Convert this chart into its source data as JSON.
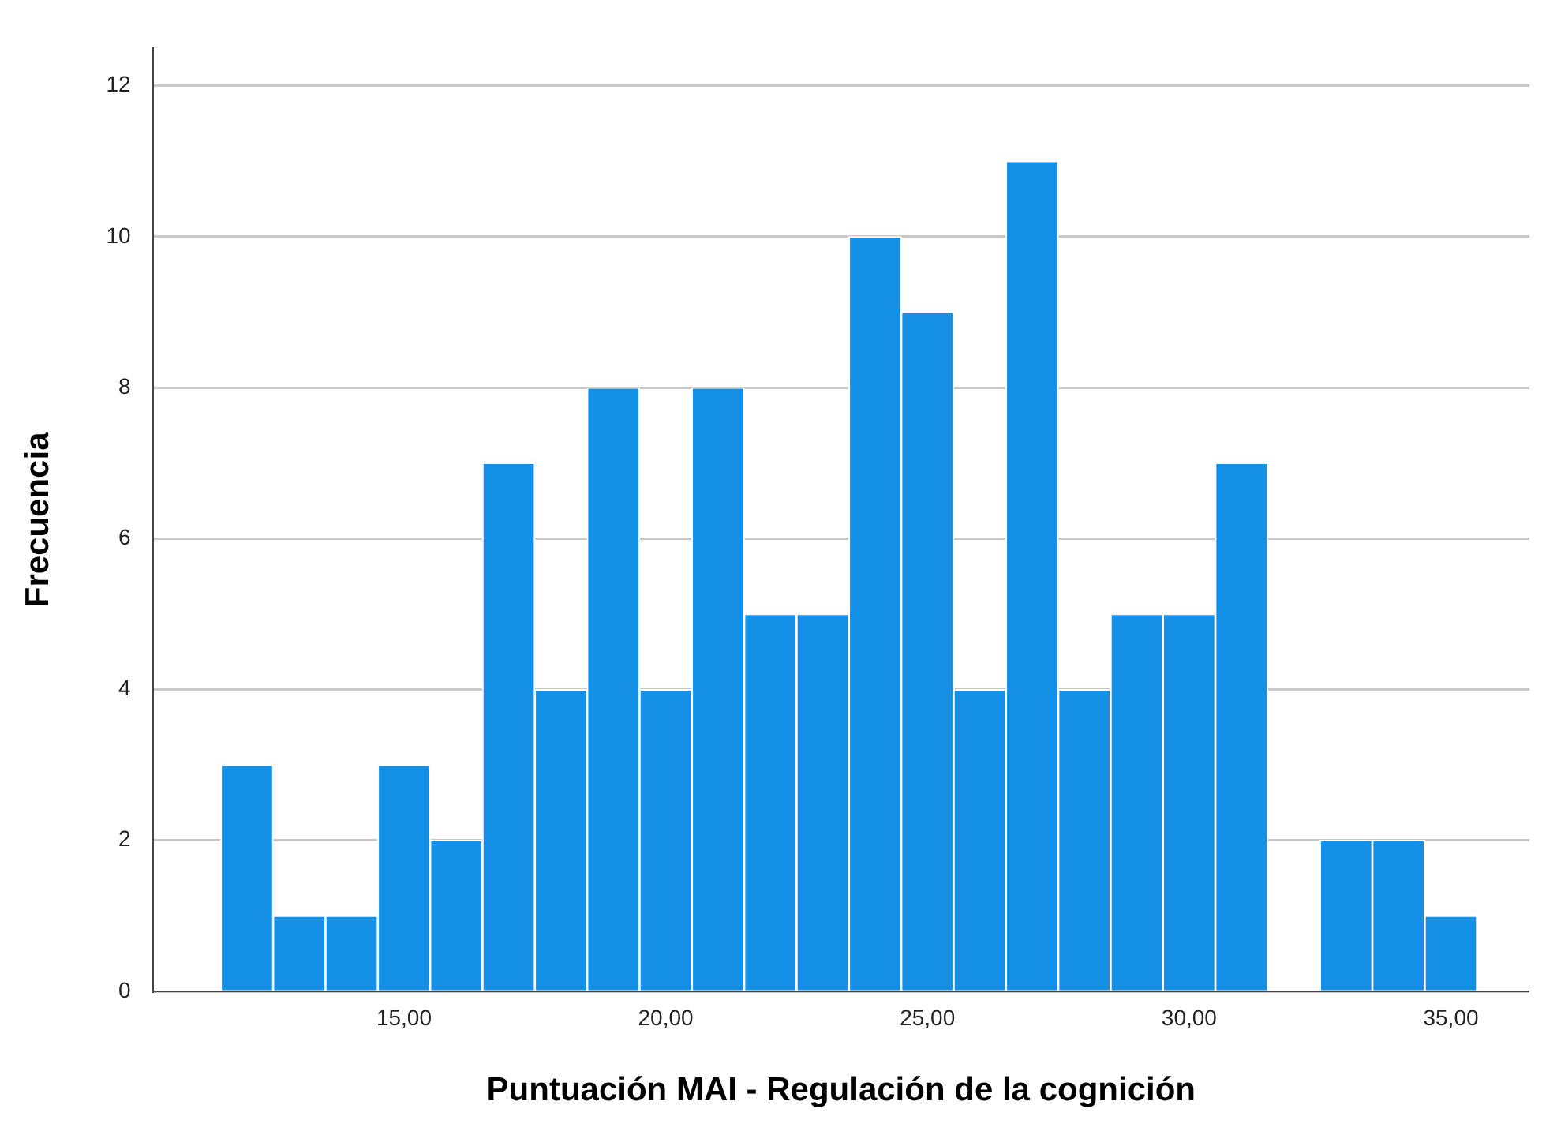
{
  "chart_data": {
    "type": "histogram",
    "xlabel": "Puntuación MAI - Regulación de la cognición",
    "ylabel": "Frecuencia",
    "bins": [
      11.5,
      12.5,
      13.5,
      14.5,
      15.5,
      16.5,
      17.5,
      18.5,
      19.5,
      20.5,
      21.5,
      22.5,
      23.5,
      24.5,
      25.5,
      26.5,
      27.5,
      28.5,
      29.5,
      30.5,
      31.5,
      32.5,
      33.5,
      34.5,
      35.5
    ],
    "values": [
      3,
      1,
      1,
      3,
      2,
      7,
      4,
      8,
      4,
      8,
      5,
      5,
      10,
      9,
      4,
      11,
      4,
      5,
      5,
      7,
      0,
      2,
      2,
      1
    ],
    "color": "#1490e6",
    "xlim": [
      10.2,
      36.5
    ],
    "ylim": [
      0,
      12.5
    ],
    "xticks": [
      {
        "value": 15,
        "label": "15,00"
      },
      {
        "value": 20,
        "label": "20,00"
      },
      {
        "value": 25,
        "label": "25,00"
      },
      {
        "value": 30,
        "label": "30,00"
      },
      {
        "value": 35,
        "label": "35,00"
      }
    ],
    "yticks": [
      0,
      2,
      4,
      6,
      8,
      10,
      12
    ],
    "grid": "y"
  }
}
